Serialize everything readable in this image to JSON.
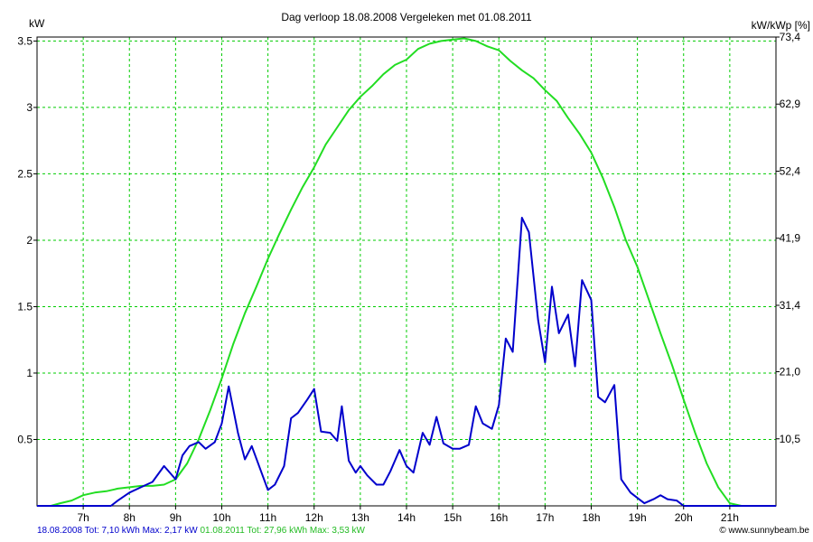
{
  "chart_data": {
    "type": "line",
    "title": "Dag  verloop 18.08.2008   Vergeleken met 01.08.2011",
    "ylabel": "kW",
    "y2label": "kW/kWp [%]",
    "xlim": [
      6,
      22
    ],
    "ylim": [
      0,
      3.53
    ],
    "y2lim": [
      0,
      73.4
    ],
    "grid": true,
    "x_ticks": [
      {
        "value": 7,
        "label": "7h"
      },
      {
        "value": 8,
        "label": "8h"
      },
      {
        "value": 9,
        "label": "9h"
      },
      {
        "value": 10,
        "label": "10h"
      },
      {
        "value": 11,
        "label": "11h"
      },
      {
        "value": 12,
        "label": "12h"
      },
      {
        "value": 13,
        "label": "13h"
      },
      {
        "value": 14,
        "label": "14h"
      },
      {
        "value": 15,
        "label": "15h"
      },
      {
        "value": 16,
        "label": "16h"
      },
      {
        "value": 17,
        "label": "17h"
      },
      {
        "value": 18,
        "label": "18h"
      },
      {
        "value": 19,
        "label": "19h"
      },
      {
        "value": 20,
        "label": "20h"
      },
      {
        "value": 21,
        "label": "21h"
      }
    ],
    "y_ticks": [
      {
        "value": 0.5,
        "label": "0.5"
      },
      {
        "value": 1,
        "label": "1"
      },
      {
        "value": 1.5,
        "label": "1.5"
      },
      {
        "value": 2,
        "label": "2"
      },
      {
        "value": 2.5,
        "label": "2.5"
      },
      {
        "value": 3,
        "label": "3"
      },
      {
        "value": 3.5,
        "label": "3.5"
      }
    ],
    "y2_ticks": [
      {
        "value": 10.5,
        "label": "10,5"
      },
      {
        "value": 21.0,
        "label": "21,0"
      },
      {
        "value": 31.4,
        "label": "31,4"
      },
      {
        "value": 41.9,
        "label": "41,9"
      },
      {
        "value": 52.4,
        "label": "52,4"
      },
      {
        "value": 62.9,
        "label": "62,9"
      },
      {
        "value": 73.4,
        "label": "73,4"
      }
    ],
    "series": [
      {
        "name": "01.08.2011",
        "color": "#22dd22",
        "x": [
          6.0,
          6.3,
          6.5,
          6.75,
          7.0,
          7.25,
          7.5,
          7.75,
          8.0,
          8.25,
          8.5,
          8.75,
          9.0,
          9.25,
          9.5,
          9.75,
          10.0,
          10.25,
          10.5,
          10.75,
          11.0,
          11.25,
          11.5,
          11.75,
          12.0,
          12.25,
          12.5,
          12.75,
          13.0,
          13.25,
          13.5,
          13.75,
          14.0,
          14.25,
          14.5,
          14.75,
          15.0,
          15.25,
          15.5,
          15.75,
          16.0,
          16.25,
          16.5,
          16.75,
          17.0,
          17.25,
          17.5,
          17.75,
          18.0,
          18.25,
          18.5,
          18.75,
          19.0,
          19.25,
          19.5,
          19.75,
          20.0,
          20.25,
          20.5,
          20.75,
          21.0,
          21.25,
          21.4,
          21.6,
          22.0
        ],
        "y": [
          0.0,
          0.0,
          0.02,
          0.04,
          0.08,
          0.1,
          0.11,
          0.13,
          0.14,
          0.15,
          0.15,
          0.16,
          0.2,
          0.32,
          0.5,
          0.72,
          0.96,
          1.22,
          1.45,
          1.65,
          1.86,
          2.05,
          2.23,
          2.4,
          2.55,
          2.72,
          2.85,
          2.98,
          3.08,
          3.16,
          3.25,
          3.32,
          3.36,
          3.44,
          3.48,
          3.5,
          3.51,
          3.52,
          3.5,
          3.46,
          3.43,
          3.35,
          3.28,
          3.22,
          3.13,
          3.05,
          2.92,
          2.8,
          2.66,
          2.47,
          2.25,
          2.0,
          1.8,
          1.55,
          1.3,
          1.06,
          0.8,
          0.55,
          0.32,
          0.14,
          0.02,
          0.0,
          0.0,
          0.0,
          0.0
        ]
      },
      {
        "name": "18.08.2008",
        "color": "#0000cc",
        "x": [
          6.0,
          7.6,
          7.75,
          8.0,
          8.25,
          8.5,
          8.75,
          9.0,
          9.15,
          9.3,
          9.5,
          9.65,
          9.85,
          10.0,
          10.15,
          10.35,
          10.5,
          10.65,
          10.85,
          11.0,
          11.15,
          11.35,
          11.5,
          11.65,
          11.85,
          12.0,
          12.15,
          12.35,
          12.5,
          12.6,
          12.75,
          12.9,
          13.0,
          13.15,
          13.35,
          13.5,
          13.65,
          13.85,
          14.0,
          14.15,
          14.35,
          14.5,
          14.65,
          14.8,
          15.0,
          15.15,
          15.35,
          15.5,
          15.65,
          15.85,
          16.0,
          16.15,
          16.3,
          16.5,
          16.65,
          16.85,
          17.0,
          17.15,
          17.3,
          17.5,
          17.65,
          17.8,
          18.0,
          18.15,
          18.3,
          18.5,
          18.65,
          18.85,
          19.0,
          19.15,
          19.35,
          19.5,
          19.65,
          19.85,
          20.0,
          20.5,
          21.0,
          22.0
        ],
        "y": [
          0.0,
          0.0,
          0.04,
          0.1,
          0.14,
          0.18,
          0.3,
          0.2,
          0.38,
          0.45,
          0.48,
          0.43,
          0.48,
          0.62,
          0.9,
          0.55,
          0.35,
          0.45,
          0.26,
          0.12,
          0.16,
          0.3,
          0.66,
          0.7,
          0.8,
          0.88,
          0.56,
          0.55,
          0.49,
          0.75,
          0.34,
          0.25,
          0.3,
          0.23,
          0.16,
          0.16,
          0.26,
          0.42,
          0.3,
          0.25,
          0.55,
          0.46,
          0.67,
          0.47,
          0.43,
          0.43,
          0.46,
          0.75,
          0.62,
          0.58,
          0.76,
          1.26,
          1.16,
          2.17,
          2.06,
          1.4,
          1.08,
          1.65,
          1.3,
          1.44,
          1.05,
          1.7,
          1.55,
          0.82,
          0.78,
          0.91,
          0.2,
          0.1,
          0.06,
          0.02,
          0.05,
          0.08,
          0.05,
          0.04,
          0.0,
          0.0,
          0.0,
          0.0
        ]
      }
    ],
    "footer": {
      "series1": "18.08.2008 Tot: 7,10 kWh Max: 2,17 kW",
      "series2": "01.08.2011 Tot: 27,96 kWh Max: 3,53 kW",
      "credit": "© www.sunnybeam.be"
    }
  }
}
